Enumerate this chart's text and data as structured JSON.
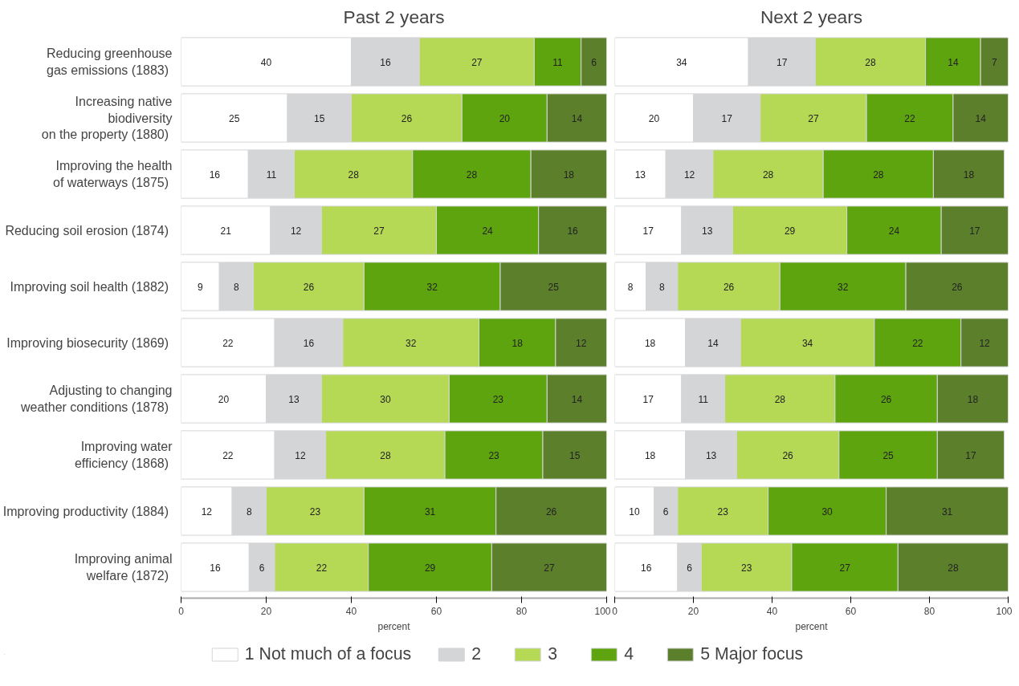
{
  "chart_data": [
    {
      "type": "bar",
      "orientation": "horizontal",
      "stacked": true,
      "title": "Past 2 years",
      "xlabel": "percent",
      "categories": [
        "Reducing greenhouse\ngas emissions  (1883)",
        "Increasing native\nbiodiversity\non the property  (1880)",
        "Improving the health\nof waterways  (1875)",
        "Reducing soil erosion  (1874)",
        "Improving soil health  (1882)",
        "Improving biosecurity  (1869)",
        "Adjusting to changing\nweather conditions  (1878)",
        "Improving water\nefficiency  (1868)",
        "Improving productivity  (1884)",
        "Improving animal\nwelfare  (1872)"
      ],
      "xlim": [
        0,
        100
      ],
      "xticks": [
        0,
        20,
        40,
        60,
        80,
        100
      ],
      "grid": false,
      "legend": "bottom",
      "series": [
        {
          "name": "1 Not much of a focus",
          "color": "#ffffff",
          "values": [
            40,
            25,
            15.8,
            21,
            9,
            22,
            20,
            22,
            12,
            16
          ],
          "value_labels": [
            "40",
            "25",
            "16",
            "21",
            "9",
            "22",
            "20",
            "22",
            "12",
            "16"
          ]
        },
        {
          "name": "2",
          "color": "#d4d5d7",
          "values": [
            16,
            15,
            10.8,
            12,
            8,
            16,
            13,
            12,
            8,
            6
          ],
          "value_labels": [
            "16",
            "15",
            "11",
            "12",
            "8",
            "16",
            "13",
            "12",
            "8",
            "6"
          ]
        },
        {
          "name": "3",
          "color": "#b5d955",
          "values": [
            27,
            26,
            27.8,
            27,
            26,
            32,
            30,
            28,
            23,
            22
          ],
          "value_labels": [
            "27",
            "26",
            "28",
            "27",
            "26",
            "32",
            "30",
            "28",
            "23",
            "22"
          ]
        },
        {
          "name": "4",
          "color": "#5ea40e",
          "values": [
            11,
            20,
            27.8,
            24,
            32,
            18,
            23,
            23,
            31,
            29
          ],
          "value_labels": [
            "11",
            "20",
            "28",
            "24",
            "32",
            "18",
            "23",
            "23",
            "31",
            "29"
          ]
        },
        {
          "name": "5 Major focus",
          "color": "#5c7f2c",
          "values": [
            6,
            14,
            17.8,
            16,
            25,
            12,
            14,
            15,
            26,
            27
          ],
          "value_labels": [
            "6",
            "14",
            "18",
            "16",
            "25",
            "12",
            "14",
            "15",
            "26",
            "27"
          ]
        }
      ]
    },
    {
      "type": "bar",
      "orientation": "horizontal",
      "stacked": true,
      "title": "Next 2 years",
      "xlabel": "percent",
      "categories": [
        null,
        null,
        null,
        null,
        null,
        null,
        null,
        null,
        null,
        null
      ],
      "xlim": [
        0,
        100
      ],
      "xticks": [
        0,
        20,
        40,
        60,
        80,
        100
      ],
      "grid": false,
      "tick_labels": "x",
      "data_labels": true,
      "series": [
        {
          "color": "#ffffff",
          "values": [
            34,
            20,
            13,
            17,
            8,
            18,
            17,
            18,
            10,
            16
          ]
        },
        {
          "color": "#d4d5d7",
          "values": [
            17,
            17,
            12,
            13,
            8,
            14,
            11,
            13,
            6,
            6
          ]
        },
        {
          "color": "#b5d955",
          "values": [
            28,
            27,
            28,
            29,
            26,
            34,
            28,
            26,
            23,
            23
          ]
        },
        {
          "color": "#5ea40e",
          "values": [
            14,
            22,
            28,
            24,
            32,
            22,
            26,
            25,
            30,
            27
          ]
        },
        {
          "color": "#5c7f2c",
          "values": [
            7,
            14,
            18,
            17,
            26,
            12,
            18,
            17,
            31,
            28
          ]
        }
      ]
    }
  ]
}
